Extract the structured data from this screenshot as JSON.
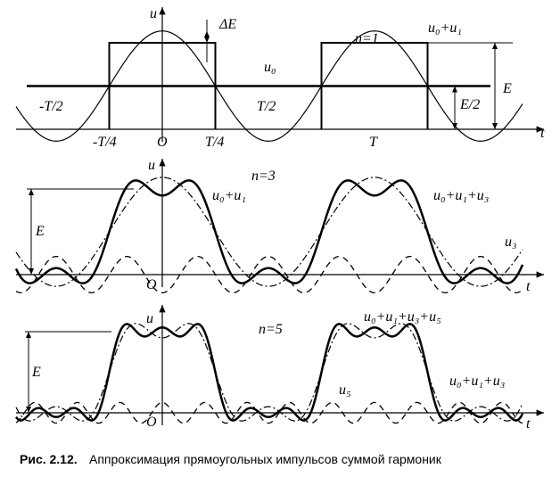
{
  "panel1": {
    "u": "u",
    "delta_e": "ΔE",
    "n": "n=1",
    "sum": "u₀+u₁",
    "u0": "u₀",
    "e": "E",
    "e_half": "E/2",
    "minus_t_half": "-T/2",
    "t_half": "T/2",
    "minus_t_quarter": "-T/4",
    "origin": "O",
    "t_quarter": "T/4",
    "period": "T",
    "t": "t"
  },
  "panel2": {
    "u": "u",
    "n": "n=3",
    "sum1": "u₀+u₁",
    "sum3": "u₀+u₁+u₃",
    "e": "E",
    "u3": "u₃",
    "origin": "O",
    "t": "t"
  },
  "panel3": {
    "u": "u",
    "n": "n=5",
    "sum5": "u₀+u₁+u₃+u₅",
    "e": "E",
    "sum3": "u₀+u₁+u₃",
    "u5": "u₅",
    "origin": "O",
    "t": "t"
  },
  "caption": {
    "number": "Рис. 2.12.",
    "text": "Аппроксимация прямоугольных импульсов суммой гармоник"
  }
}
